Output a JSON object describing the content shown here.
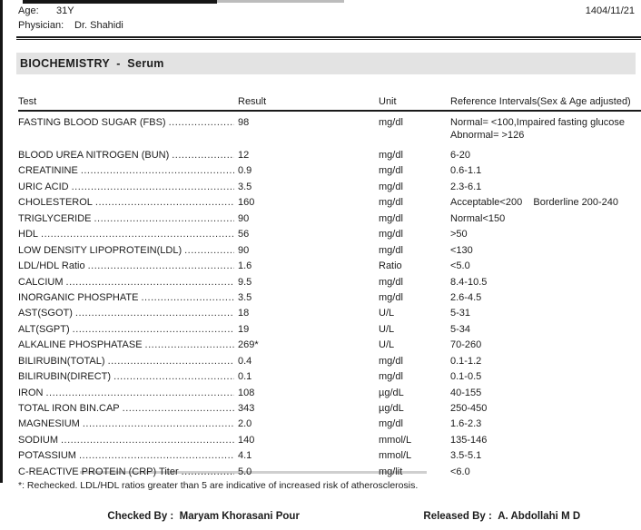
{
  "patient": {
    "age_label": "Age:",
    "age_value": "31Y",
    "physician_label": "Physician:",
    "physician_value": "Dr. Shahidi",
    "date": "1404/11/21"
  },
  "section": {
    "title": "BIOCHEMISTRY  -  Serum"
  },
  "table": {
    "headers": {
      "test": "Test",
      "result": "Result",
      "unit": "Unit",
      "reference": "Reference Intervals(Sex & Age adjusted)"
    },
    "rows": [
      {
        "name": "FASTING BLOOD SUGAR (FBS)",
        "result": "98",
        "unit": "mg/dl",
        "ref": "Normal= <100,Impaired fasting glucose",
        "ref2": "Abnormal= >126"
      },
      {
        "name": "BLOOD UREA NITROGEN (BUN)",
        "result": "12",
        "unit": "mg/dl",
        "ref": "6-20"
      },
      {
        "name": "CREATININE",
        "result": "0.9",
        "unit": "mg/dl",
        "ref": "0.6-1.1"
      },
      {
        "name": "URIC ACID",
        "result": "3.5",
        "unit": "mg/dl",
        "ref": "2.3-6.1"
      },
      {
        "name": "CHOLESTEROL",
        "result": "160",
        "unit": "mg/dl",
        "ref": "Acceptable<200    Borderline 200-240"
      },
      {
        "name": "TRIGLYCERIDE",
        "result": "90",
        "unit": "mg/dl",
        "ref": "Normal<150"
      },
      {
        "name": "HDL",
        "result": "56",
        "unit": "mg/dl",
        "ref": ">50"
      },
      {
        "name": "LOW DENSITY LIPOPROTEIN(LDL)",
        "result": "90",
        "unit": "mg/dl",
        "ref": "<130"
      },
      {
        "name": "LDL/HDL Ratio",
        "result": "1.6",
        "unit": "Ratio",
        "ref": "<5.0"
      },
      {
        "name": "CALCIUM",
        "result": "9.5",
        "unit": "mg/dl",
        "ref": "8.4-10.5"
      },
      {
        "name": "INORGANIC PHOSPHATE",
        "result": "3.5",
        "unit": "mg/dl",
        "ref": "2.6-4.5"
      },
      {
        "name": "AST(SGOT)",
        "result": "18",
        "unit": "U/L",
        "ref": "5-31"
      },
      {
        "name": "ALT(SGPT)",
        "result": "19",
        "unit": "U/L",
        "ref": "5-34"
      },
      {
        "name": "ALKALINE PHOSPHATASE",
        "result": "269*",
        "unit": "U/L",
        "ref": "70-260"
      },
      {
        "name": "BILIRUBIN(TOTAL)",
        "result": "0.4",
        "unit": "mg/dl",
        "ref": "0.1-1.2"
      },
      {
        "name": "BILIRUBIN(DIRECT)",
        "result": "0.1",
        "unit": "mg/dl",
        "ref": "0.1-0.5"
      },
      {
        "name": "IRON",
        "result": "108",
        "unit": "µg/dL",
        "ref": "40-155"
      },
      {
        "name": "TOTAL IRON BIN.CAP",
        "result": "343",
        "unit": "µg/dL",
        "ref": "250-450"
      },
      {
        "name": "MAGNESIUM",
        "result": "2.0",
        "unit": "mg/dl",
        "ref": "1.6-2.3"
      },
      {
        "name": "SODIUM",
        "result": "140",
        "unit": "mmol/L",
        "ref": "135-146"
      },
      {
        "name": "POTASSIUM",
        "result": "4.1",
        "unit": "mmol/L",
        "ref": "3.5-5.1"
      },
      {
        "name": "C-REACTIVE PROTEIN (CRP) Titer",
        "result": "5.0",
        "unit": "mg/lit",
        "ref": "<6.0"
      }
    ]
  },
  "footer": {
    "footnote": "*: Rechecked. LDL/HDL ratios greater than 5 are indicative of increased risk of atherosclerosis.",
    "checked_by_label": "Checked By :",
    "checked_by_name": "Maryam Khorasani Pour",
    "released_by_label": "Released By :",
    "released_by_name": "A. Abdollahi M D"
  },
  "colors": {
    "section_bar_bg": "#e3e3e3",
    "ink": "#1c1c1c"
  }
}
